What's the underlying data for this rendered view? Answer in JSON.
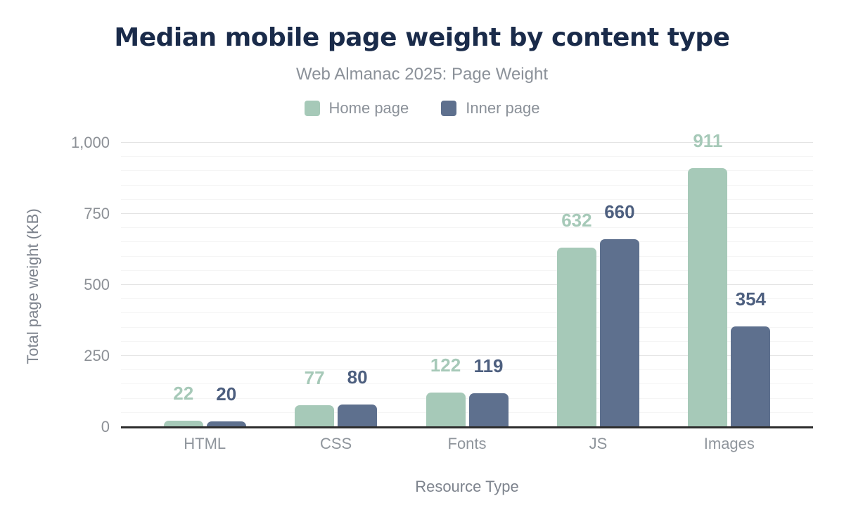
{
  "header": {
    "title": "Median mobile page weight by content type",
    "subtitle": "Web Almanac 2025: Page Weight"
  },
  "legend": [
    {
      "label": "Home page",
      "color": "#a6c9b8"
    },
    {
      "label": "Inner page",
      "color": "#5e708e"
    }
  ],
  "chart_data": {
    "type": "bar",
    "categories": [
      "HTML",
      "CSS",
      "Fonts",
      "JS",
      "Images"
    ],
    "series": [
      {
        "name": "Home page",
        "color": "#a6c9b8",
        "label_color": "#a6c9b8",
        "values": [
          22,
          77,
          122,
          632,
          911
        ]
      },
      {
        "name": "Inner page",
        "color": "#5e708e",
        "label_color": "#4d5f7f",
        "values": [
          20,
          80,
          119,
          660,
          354
        ]
      }
    ],
    "title": "Median mobile page weight by content type",
    "subtitle": "Web Almanac 2025: Page Weight",
    "xlabel": "Resource Type",
    "ylabel": "Total page weight (KB)",
    "ylim": [
      0,
      1000
    ],
    "yticks": [
      {
        "value": 0,
        "label": "0"
      },
      {
        "value": 250,
        "label": "250"
      },
      {
        "value": 500,
        "label": "500"
      },
      {
        "value": 750,
        "label": "750"
      },
      {
        "value": 1000,
        "label": "1,000"
      }
    ],
    "minor_tick_step": 50,
    "grid": true,
    "legend_position": "top",
    "data_labels": true
  }
}
